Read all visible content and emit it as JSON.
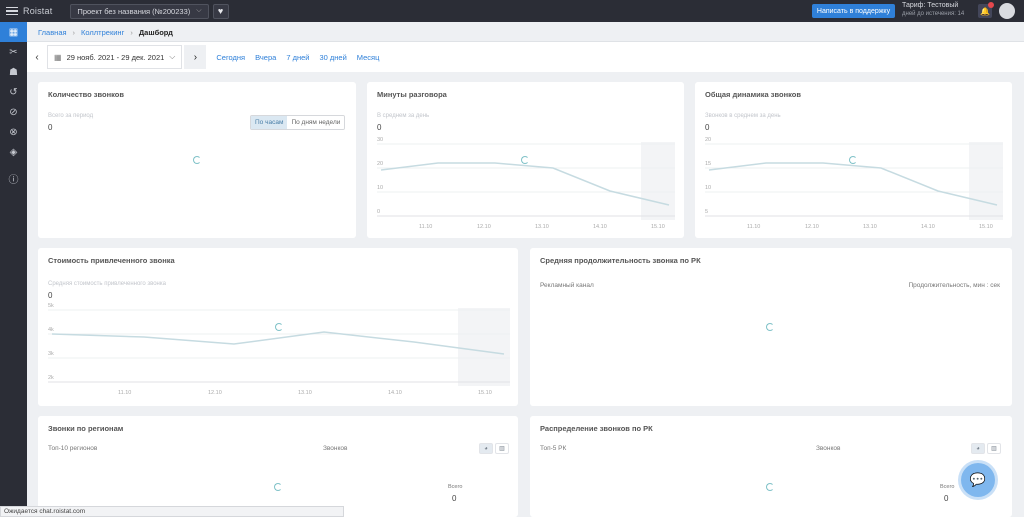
{
  "topbar": {
    "logo": "Roistat",
    "project": "Проект без названия (№200233)",
    "support_button": "Написать в поддержку",
    "tariff": "Тариф: Тестовый",
    "tariff_sub": "дней до истечения: 14"
  },
  "breadcrumb": [
    "Главная",
    "Коллтрекинг",
    "Дашборд"
  ],
  "datebar": {
    "range": "29 нояб. 2021 - 29 дек. 2021",
    "quick": [
      "Сегодня",
      "Вчера",
      "7 дней",
      "30 дней",
      "Месяц"
    ]
  },
  "cards": {
    "calls_count": {
      "title": "Количество звонков",
      "hint": "Всего за период",
      "value": "0",
      "toggle": [
        "По часам",
        "По дням недели"
      ]
    },
    "talk_minutes": {
      "title": "Минуты разговора",
      "hint": "В среднем за день",
      "value": "0",
      "y_ticks": [
        "30",
        "20",
        "10",
        "0"
      ],
      "x_ticks": [
        "11.10",
        "12.10",
        "13.10",
        "14.10",
        "15.10"
      ]
    },
    "call_dynamics": {
      "title": "Общая динамика звонков",
      "hint": "Звонков в среднем за день",
      "value": "0",
      "y_ticks": [
        "20",
        "15",
        "10",
        "5"
      ],
      "x_ticks": [
        "11.10",
        "12.10",
        "13.10",
        "14.10",
        "15.10"
      ]
    },
    "call_cost": {
      "title": "Стоимость привлеченного звонка",
      "hint": "Средняя стоимость привлеченного звонка",
      "value": "0",
      "y_ticks": [
        "5k",
        "4k",
        "3k",
        "2k"
      ],
      "x_ticks": [
        "11.10",
        "12.10",
        "13.10",
        "14.10",
        "15.10"
      ]
    },
    "avg_duration": {
      "title": "Средняя продолжительность звонка по РК",
      "col_left": "Рекламный канал",
      "col_right": "Продолжительность, мин : сек"
    },
    "regions": {
      "title": "Звонки по регионам",
      "subtitle": "Топ-10 регионов",
      "col": "Звонков",
      "total_label": "Всего",
      "total": "0"
    },
    "distribution": {
      "title": "Распределение звонков по РК",
      "subtitle": "Топ-5 РК",
      "col": "Звонков",
      "total_label": "Всего",
      "total": "0"
    }
  },
  "status": "Ожидается chat.roistat.com"
}
